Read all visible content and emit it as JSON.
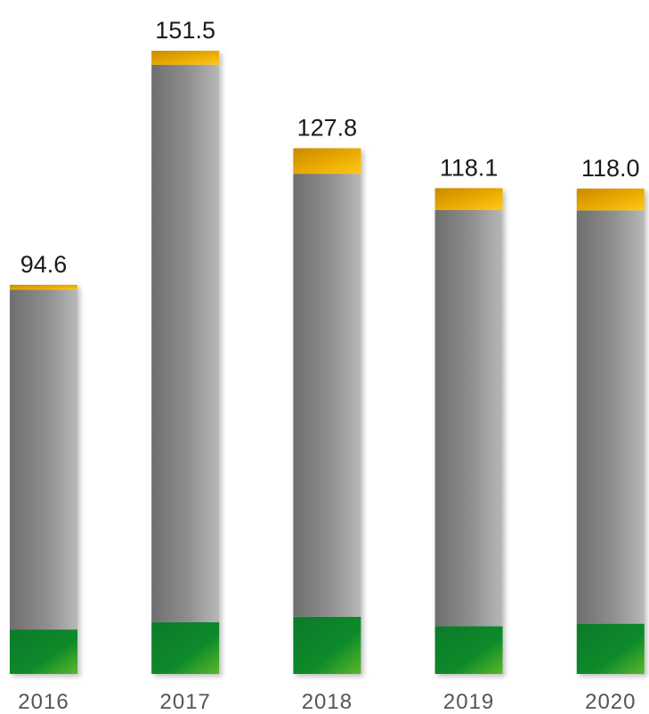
{
  "chart_data": {
    "type": "bar",
    "stacked": true,
    "categories": [
      "2016",
      "2017",
      "2018",
      "2019",
      "2020"
    ],
    "totals": [
      "94.6",
      "151.5",
      "127.8",
      "118.1",
      "118.0"
    ],
    "series": [
      {
        "values": [
          10.8,
          12.6,
          13.9,
          11.6,
          12.2
        ],
        "color": "#0a8a2a"
      },
      {
        "values": [
          82.6,
          135.5,
          107.7,
          101.2,
          100.5
        ],
        "color": "#8a8a8a"
      },
      {
        "values": [
          1.2,
          3.4,
          6.2,
          5.3,
          5.3
        ],
        "color": "#f0b400"
      }
    ],
    "ylim": [
      0,
      151.5
    ],
    "grid": false,
    "legend": "none"
  }
}
